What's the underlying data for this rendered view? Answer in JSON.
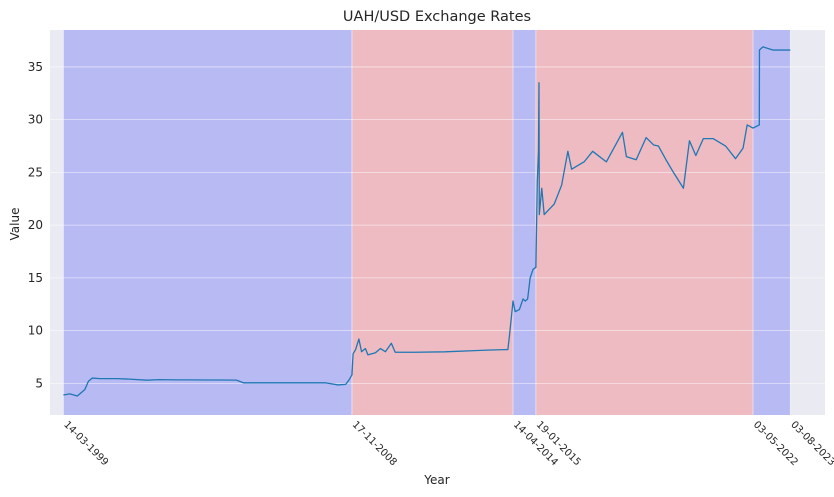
{
  "chart_data": {
    "type": "line",
    "title": "UAH/USD Exchange Rates",
    "xlabel": "Year",
    "ylabel": "Value",
    "xlim": [
      "1998-10-01",
      "2024-10-01"
    ],
    "ylim": [
      2,
      38.5
    ],
    "yticks": [
      5,
      10,
      15,
      20,
      25,
      30,
      35
    ],
    "xticks": [
      {
        "date": "1999-03-14",
        "label": "14-03-1999"
      },
      {
        "date": "2008-11-17",
        "label": "17-11-2008"
      },
      {
        "date": "2014-04-14",
        "label": "14-04-2014"
      },
      {
        "date": "2015-01-19",
        "label": "19-01-2015"
      },
      {
        "date": "2022-05-03",
        "label": "03-05-2022"
      },
      {
        "date": "2023-08-03",
        "label": "03-08-2023"
      }
    ],
    "grid": true,
    "colors": {
      "background": "#eaeaf2",
      "line": "#1f77b4",
      "span_blue": "#b8baf4",
      "span_red": "#eebbc2",
      "grid": "#ffffff",
      "text": "#262626"
    },
    "spans": [
      {
        "start": "1999-03-14",
        "end": "2008-11-17",
        "color": "blue"
      },
      {
        "start": "2008-11-17",
        "end": "2014-04-14",
        "color": "red"
      },
      {
        "start": "2014-04-14",
        "end": "2015-01-19",
        "color": "blue"
      },
      {
        "start": "2015-01-19",
        "end": "2022-05-03",
        "color": "red"
      },
      {
        "start": "2022-05-03",
        "end": "2023-08-03",
        "color": "blue"
      }
    ],
    "series": [
      {
        "points": [
          [
            "1999-03-14",
            3.9
          ],
          [
            "1999-06-01",
            4.0
          ],
          [
            "1999-09-01",
            3.8
          ],
          [
            "1999-12-01",
            4.4
          ],
          [
            "2000-01-15",
            5.2
          ],
          [
            "2000-03-01",
            5.5
          ],
          [
            "2000-06-01",
            5.45
          ],
          [
            "2000-09-01",
            5.45
          ],
          [
            "2001-01-01",
            5.45
          ],
          [
            "2001-06-01",
            5.4
          ],
          [
            "2002-01-01",
            5.3
          ],
          [
            "2002-06-01",
            5.35
          ],
          [
            "2003-01-01",
            5.33
          ],
          [
            "2003-06-01",
            5.33
          ],
          [
            "2004-01-01",
            5.32
          ],
          [
            "2004-06-01",
            5.32
          ],
          [
            "2005-01-01",
            5.31
          ],
          [
            "2005-04-01",
            5.05
          ],
          [
            "2006-01-01",
            5.05
          ],
          [
            "2006-06-01",
            5.05
          ],
          [
            "2007-01-01",
            5.05
          ],
          [
            "2007-06-01",
            5.05
          ],
          [
            "2008-01-01",
            5.05
          ],
          [
            "2008-06-01",
            4.85
          ],
          [
            "2008-09-01",
            4.9
          ],
          [
            "2008-10-10",
            5.3
          ],
          [
            "2008-11-17",
            5.8
          ],
          [
            "2008-12-01",
            7.8
          ],
          [
            "2009-01-01",
            8.2
          ],
          [
            "2009-02-10",
            9.2
          ],
          [
            "2009-03-15",
            8.0
          ],
          [
            "2009-05-01",
            8.3
          ],
          [
            "2009-06-01",
            7.7
          ],
          [
            "2009-09-01",
            7.9
          ],
          [
            "2009-11-01",
            8.3
          ],
          [
            "2010-01-01",
            8.0
          ],
          [
            "2010-03-15",
            8.8
          ],
          [
            "2010-05-01",
            7.95
          ],
          [
            "2011-01-01",
            7.95
          ],
          [
            "2012-01-01",
            7.99
          ],
          [
            "2013-01-01",
            8.1
          ],
          [
            "2013-06-01",
            8.15
          ],
          [
            "2014-01-01",
            8.2
          ],
          [
            "2014-02-10",
            8.2
          ],
          [
            "2014-03-01",
            9.5
          ],
          [
            "2014-04-14",
            12.8
          ],
          [
            "2014-05-10",
            11.8
          ],
          [
            "2014-07-01",
            12.0
          ],
          [
            "2014-08-15",
            13.0
          ],
          [
            "2014-09-10",
            12.8
          ],
          [
            "2014-10-10",
            13.0
          ],
          [
            "2014-11-10",
            15.0
          ],
          [
            "2014-12-15",
            15.8
          ],
          [
            "2015-01-19",
            16.0
          ],
          [
            "2015-02-05",
            24.0
          ],
          [
            "2015-02-20",
            27.0
          ],
          [
            "2015-02-26",
            33.5
          ],
          [
            "2015-03-02",
            21.0
          ],
          [
            "2015-04-01",
            23.5
          ],
          [
            "2015-05-01",
            21.0
          ],
          [
            "2015-07-01",
            21.5
          ],
          [
            "2015-09-01",
            22.0
          ],
          [
            "2015-12-01",
            23.8
          ],
          [
            "2016-02-15",
            27.0
          ],
          [
            "2016-04-01",
            25.3
          ],
          [
            "2016-09-01",
            26.0
          ],
          [
            "2016-12-15",
            27.0
          ],
          [
            "2017-06-01",
            26.0
          ],
          [
            "2017-12-15",
            28.8
          ],
          [
            "2018-02-01",
            26.5
          ],
          [
            "2018-06-01",
            26.2
          ],
          [
            "2018-10-01",
            28.3
          ],
          [
            "2019-01-01",
            27.6
          ],
          [
            "2019-03-01",
            27.5
          ],
          [
            "2019-06-01",
            26.2
          ],
          [
            "2019-09-01",
            25.0
          ],
          [
            "2020-01-01",
            23.5
          ],
          [
            "2020-03-15",
            28.0
          ],
          [
            "2020-06-01",
            26.6
          ],
          [
            "2020-09-01",
            28.2
          ],
          [
            "2021-01-01",
            28.2
          ],
          [
            "2021-06-01",
            27.5
          ],
          [
            "2021-10-01",
            26.3
          ],
          [
            "2022-01-01",
            27.3
          ],
          [
            "2022-02-20",
            29.5
          ],
          [
            "2022-05-03",
            29.2
          ],
          [
            "2022-07-19",
            29.5
          ],
          [
            "2022-07-21",
            36.6
          ],
          [
            "2022-09-01",
            36.9
          ],
          [
            "2023-01-01",
            36.6
          ],
          [
            "2023-06-01",
            36.6
          ],
          [
            "2023-08-03",
            36.6
          ]
        ]
      }
    ]
  }
}
